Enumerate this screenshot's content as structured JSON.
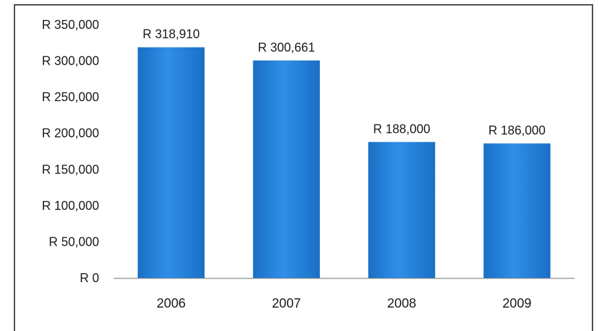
{
  "chart_data": {
    "type": "bar",
    "title": "",
    "xlabel": "",
    "ylabel": "",
    "categories": [
      "2006",
      "2007",
      "2008",
      "2009"
    ],
    "values": [
      318910,
      300661,
      188000,
      186000
    ],
    "data_labels": [
      "R 318,910",
      "R 300,661",
      "R 188,000",
      "R 186,000"
    ],
    "y_ticks": [
      0,
      50000,
      100000,
      150000,
      200000,
      250000,
      300000,
      350000
    ],
    "y_tick_labels": [
      "R 0",
      "R 50,000",
      "R 100,000",
      "R 150,000",
      "R 200,000",
      "R 250,000",
      "R 300,000",
      "R 350,000"
    ],
    "ylim": [
      0,
      350000
    ],
    "grid": false,
    "legend": "none",
    "bar_color": "#1f7fd6"
  }
}
